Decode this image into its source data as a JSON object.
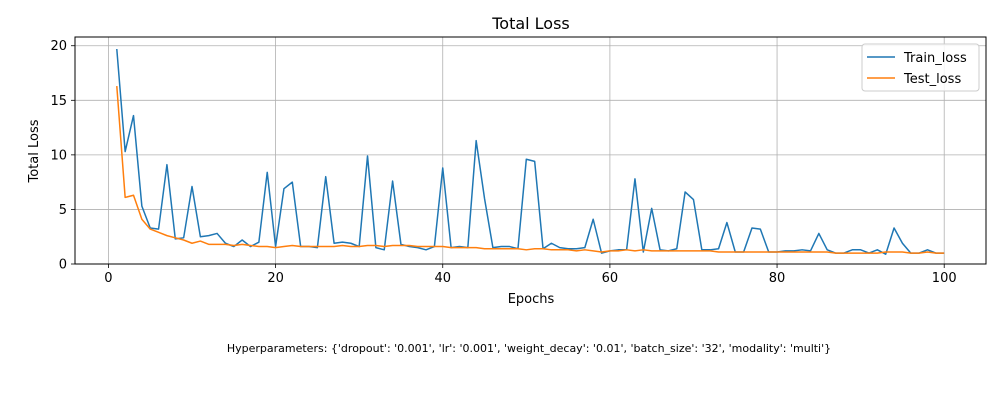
{
  "chart_data": {
    "type": "line",
    "title": "Total Loss",
    "xlabel": "Epochs",
    "ylabel": "Total Loss",
    "xlim": [
      -4,
      105
    ],
    "ylim": [
      0,
      20.8
    ],
    "xticks": [
      0,
      20,
      40,
      60,
      80,
      100
    ],
    "yticks": [
      0,
      5,
      10,
      15,
      20
    ],
    "grid": true,
    "legend_position": "top-right",
    "x": [
      1,
      2,
      3,
      4,
      5,
      6,
      7,
      8,
      9,
      10,
      11,
      12,
      13,
      14,
      15,
      16,
      17,
      18,
      19,
      20,
      21,
      22,
      23,
      24,
      25,
      26,
      27,
      28,
      29,
      30,
      31,
      32,
      33,
      34,
      35,
      36,
      37,
      38,
      39,
      40,
      41,
      42,
      43,
      44,
      45,
      46,
      47,
      48,
      49,
      50,
      51,
      52,
      53,
      54,
      55,
      56,
      57,
      58,
      59,
      60,
      61,
      62,
      63,
      64,
      65,
      66,
      67,
      68,
      69,
      70,
      71,
      72,
      73,
      74,
      75,
      76,
      77,
      78,
      79,
      80,
      81,
      82,
      83,
      84,
      85,
      86,
      87,
      88,
      89,
      90,
      91,
      92,
      93,
      94,
      95,
      96,
      97,
      98,
      99,
      100
    ],
    "series": [
      {
        "name": "Train_loss",
        "color": "#1f77b4",
        "values": [
          19.7,
          10.3,
          13.6,
          5.3,
          3.3,
          3.2,
          9.1,
          2.3,
          2.4,
          7.1,
          2.5,
          2.6,
          2.8,
          1.9,
          1.6,
          2.2,
          1.6,
          2.0,
          8.4,
          1.6,
          6.9,
          7.5,
          1.6,
          1.6,
          1.5,
          8.0,
          1.9,
          2.0,
          1.9,
          1.6,
          9.9,
          1.5,
          1.3,
          7.6,
          1.8,
          1.6,
          1.5,
          1.3,
          1.6,
          8.8,
          1.5,
          1.6,
          1.5,
          11.3,
          6.0,
          1.5,
          1.6,
          1.6,
          1.4,
          9.6,
          9.4,
          1.4,
          1.9,
          1.5,
          1.4,
          1.4,
          1.5,
          4.1,
          1.0,
          1.2,
          1.3,
          1.3,
          7.8,
          1.1,
          5.1,
          1.3,
          1.2,
          1.4,
          6.6,
          5.9,
          1.3,
          1.3,
          1.4,
          3.8,
          1.1,
          1.1,
          3.3,
          3.2,
          1.1,
          1.1,
          1.2,
          1.2,
          1.3,
          1.2,
          2.8,
          1.3,
          1.0,
          1.0,
          1.3,
          1.3,
          1.0,
          1.3,
          0.9,
          3.3,
          1.9,
          1.0,
          1.0,
          1.3,
          1.0,
          1.0
        ]
      },
      {
        "name": "Test_loss",
        "color": "#ff7f0e",
        "values": [
          16.3,
          6.1,
          6.3,
          4.1,
          3.2,
          2.9,
          2.6,
          2.4,
          2.2,
          1.9,
          2.1,
          1.8,
          1.8,
          1.8,
          1.7,
          1.8,
          1.7,
          1.6,
          1.6,
          1.5,
          1.6,
          1.7,
          1.6,
          1.6,
          1.6,
          1.6,
          1.6,
          1.7,
          1.6,
          1.6,
          1.7,
          1.7,
          1.6,
          1.7,
          1.7,
          1.7,
          1.6,
          1.6,
          1.6,
          1.6,
          1.5,
          1.5,
          1.5,
          1.5,
          1.4,
          1.4,
          1.4,
          1.4,
          1.4,
          1.3,
          1.4,
          1.4,
          1.3,
          1.3,
          1.3,
          1.2,
          1.3,
          1.2,
          1.1,
          1.2,
          1.2,
          1.3,
          1.2,
          1.3,
          1.2,
          1.2,
          1.2,
          1.2,
          1.2,
          1.2,
          1.2,
          1.2,
          1.1,
          1.1,
          1.1,
          1.1,
          1.1,
          1.1,
          1.1,
          1.1,
          1.1,
          1.1,
          1.1,
          1.1,
          1.1,
          1.1,
          1.0,
          1.0,
          1.0,
          1.0,
          1.0,
          1.0,
          1.1,
          1.1,
          1.1,
          1.0,
          1.0,
          1.1,
          1.0,
          1.0
        ]
      }
    ]
  },
  "hyperparameters_text": "Hyperparameters: {'dropout': '0.001', 'lr': '0.001', 'weight_decay': '0.01', 'batch_size': '32', 'modality': 'multi'}"
}
